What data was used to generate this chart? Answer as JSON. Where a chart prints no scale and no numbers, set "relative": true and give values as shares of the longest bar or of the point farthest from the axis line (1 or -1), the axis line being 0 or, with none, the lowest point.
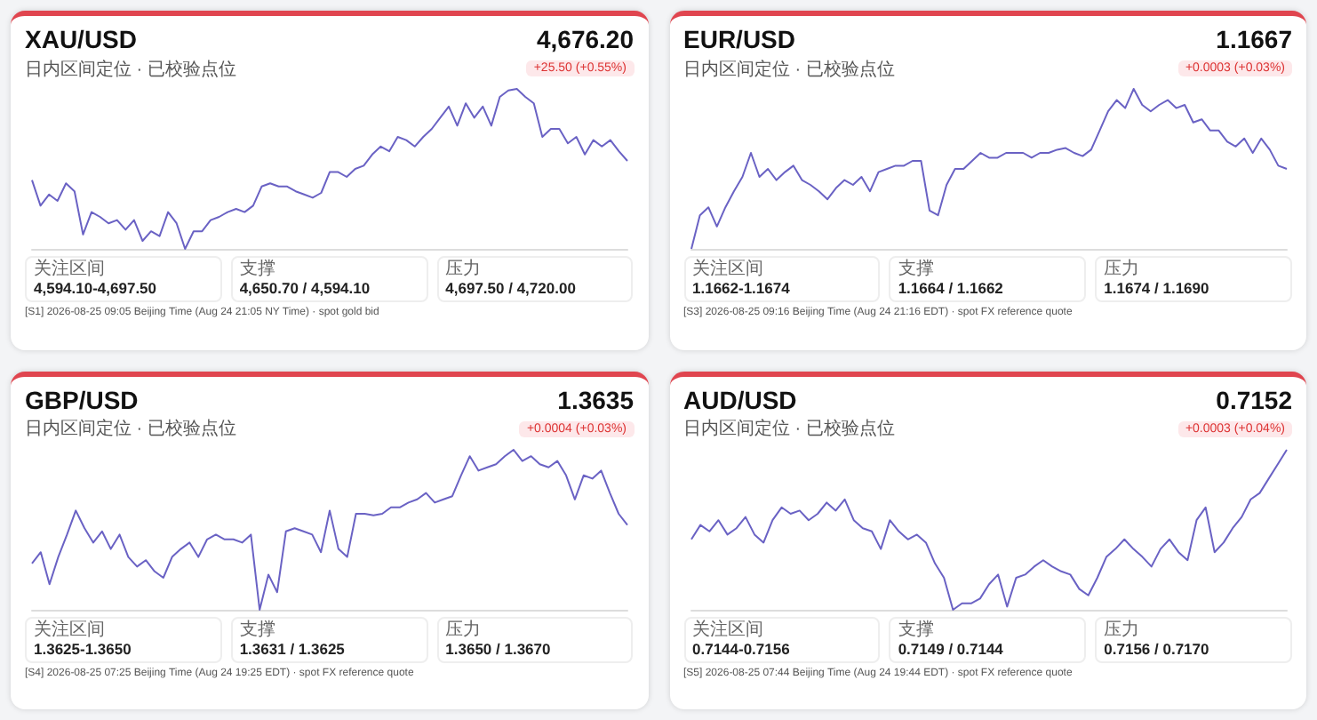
{
  "chart_data": [
    {
      "type": "line",
      "title": "XAU/USD",
      "subtitle": "日内区间定位 · 已校验点位",
      "relative": true,
      "categories": [
        null,
        null,
        null,
        null,
        null,
        null,
        null,
        null,
        null,
        null,
        null,
        null,
        null,
        null,
        null,
        null,
        null,
        null,
        null,
        null,
        null,
        null,
        null,
        null,
        null,
        null,
        null,
        null,
        null,
        null,
        null,
        null,
        null,
        null,
        null,
        null,
        null,
        null,
        null,
        null,
        null,
        null,
        null,
        null,
        null,
        null,
        null,
        null,
        null,
        null,
        null,
        null,
        null,
        null,
        null,
        null,
        null,
        null,
        null,
        null,
        null,
        null,
        null,
        null,
        null,
        null,
        null,
        null,
        null,
        null,
        null
      ],
      "series": [
        {
          "color": "#6a62c4",
          "values": [
            0.43,
            0.27,
            0.34,
            0.3,
            0.41,
            0.36,
            0.09,
            0.23,
            0.2,
            0.16,
            0.18,
            0.12,
            0.18,
            0.05,
            0.11,
            0.08,
            0.23,
            0.16,
            0,
            0.11,
            0.11,
            0.18,
            0.2,
            0.23,
            0.25,
            0.23,
            0.27,
            0.39,
            0.41,
            0.39,
            0.39,
            0.36,
            0.34,
            0.32,
            0.35,
            0.48,
            0.48,
            0.45,
            0.5,
            0.52,
            0.59,
            0.64,
            0.61,
            0.7,
            0.68,
            0.64,
            0.7,
            0.75,
            0.82,
            0.89,
            0.77,
            0.91,
            0.82,
            0.89,
            0.77,
            0.95,
            0.99,
            1,
            0.95,
            0.91,
            0.7,
            0.75,
            0.75,
            0.66,
            0.7,
            0.59,
            0.68,
            0.64,
            0.68,
            0.61,
            0.55
          ]
        }
      ],
      "annotations": [
        "4,676.20",
        "+25.50 (+0.55%)",
        "关注区间",
        "4,594.10-4,697.50",
        "支撑",
        "4,650.70 / 4,594.10",
        "压力",
        "4,697.50 / 4,720.00",
        "[S1] 2026-08-25 09:05 Beijing Time (Aug 24 21:05 NY Time) · spot gold bid"
      ]
    },
    {
      "type": "line",
      "title": "EUR/USD",
      "subtitle": "日内区间定位 · 已校验点位",
      "relative": true,
      "categories": [
        null,
        null,
        null,
        null,
        null,
        null,
        null,
        null,
        null,
        null,
        null,
        null,
        null,
        null,
        null,
        null,
        null,
        null,
        null,
        null,
        null,
        null,
        null,
        null,
        null,
        null,
        null,
        null,
        null,
        null,
        null,
        null,
        null,
        null,
        null,
        null,
        null,
        null,
        null,
        null,
        null,
        null,
        null,
        null,
        null,
        null,
        null,
        null,
        null,
        null,
        null,
        null,
        null,
        null,
        null,
        null,
        null,
        null,
        null,
        null,
        null,
        null,
        null,
        null,
        null,
        null,
        null,
        null,
        null,
        null,
        null
      ],
      "series": [
        {
          "color": "#6a62c4",
          "values": [
            0,
            0.21,
            0.26,
            0.14,
            0.26,
            0.36,
            0.45,
            0.6,
            0.45,
            0.5,
            0.43,
            0.48,
            0.52,
            0.43,
            0.4,
            0.36,
            0.31,
            0.38,
            0.43,
            0.4,
            0.45,
            0.36,
            0.48,
            0.5,
            0.52,
            0.52,
            0.55,
            0.55,
            0.24,
            0.21,
            0.4,
            0.5,
            0.5,
            0.55,
            0.6,
            0.57,
            0.57,
            0.6,
            0.6,
            0.6,
            0.57,
            0.6,
            0.6,
            0.62,
            0.63,
            0.6,
            0.58,
            0.62,
            0.74,
            0.86,
            0.93,
            0.88,
            1,
            0.9,
            0.86,
            0.9,
            0.93,
            0.88,
            0.9,
            0.79,
            0.81,
            0.74,
            0.74,
            0.67,
            0.64,
            0.69,
            0.6,
            0.69,
            0.62,
            0.52,
            0.5
          ]
        }
      ],
      "annotations": [
        "1.1667",
        "+0.0003 (+0.03%)",
        "关注区间",
        "1.1662-1.1674",
        "支撑",
        "1.1664 / 1.1662",
        "压力",
        "1.1674 / 1.1690",
        "[S3] 2026-08-25 09:16 Beijing Time (Aug 24 21:16 EDT) · spot FX reference quote"
      ]
    },
    {
      "type": "line",
      "title": "GBP/USD",
      "subtitle": "日内区间定位 · 已校验点位",
      "relative": true,
      "categories": [
        null,
        null,
        null,
        null,
        null,
        null,
        null,
        null,
        null,
        null,
        null,
        null,
        null,
        null,
        null,
        null,
        null,
        null,
        null,
        null,
        null,
        null,
        null,
        null,
        null,
        null,
        null,
        null,
        null,
        null,
        null,
        null,
        null,
        null,
        null,
        null,
        null,
        null,
        null,
        null,
        null,
        null,
        null,
        null,
        null,
        null,
        null,
        null,
        null,
        null,
        null,
        null,
        null,
        null,
        null,
        null,
        null,
        null,
        null,
        null,
        null,
        null,
        null,
        null,
        null,
        null,
        null,
        null,
        null
      ],
      "series": [
        {
          "color": "#6a62c4",
          "values": [
            0.29,
            0.36,
            0.16,
            0.33,
            0.47,
            0.62,
            0.51,
            0.42,
            0.49,
            0.38,
            0.47,
            0.33,
            0.27,
            0.31,
            0.24,
            0.2,
            0.33,
            0.38,
            0.42,
            0.33,
            0.44,
            0.47,
            0.44,
            0.44,
            0.42,
            0.47,
            0,
            0.22,
            0.11,
            0.49,
            0.51,
            0.49,
            0.47,
            0.36,
            0.62,
            0.38,
            0.33,
            0.6,
            0.6,
            0.59,
            0.6,
            0.64,
            0.64,
            0.67,
            0.69,
            0.73,
            0.67,
            0.69,
            0.71,
            0.84,
            0.96,
            0.87,
            0.89,
            0.91,
            0.96,
            1,
            0.93,
            0.96,
            0.91,
            0.89,
            0.93,
            0.84,
            0.69,
            0.84,
            0.82,
            0.87,
            0.73,
            0.6,
            0.53
          ]
        }
      ],
      "annotations": [
        "1.3635",
        "+0.0004 (+0.03%)",
        "关注区间",
        "1.3625-1.3650",
        "支撑",
        "1.3631 / 1.3625",
        "压力",
        "1.3650 / 1.3670",
        "[S4] 2026-08-25 07:25 Beijing Time (Aug 24 19:25 EDT) · spot FX reference quote"
      ]
    },
    {
      "type": "line",
      "title": "AUD/USD",
      "subtitle": "日内区间定位 · 已校验点位",
      "relative": true,
      "categories": [
        null,
        null,
        null,
        null,
        null,
        null,
        null,
        null,
        null,
        null,
        null,
        null,
        null,
        null,
        null,
        null,
        null,
        null,
        null,
        null,
        null,
        null,
        null,
        null,
        null,
        null,
        null,
        null,
        null,
        null,
        null,
        null,
        null,
        null,
        null,
        null,
        null,
        null,
        null,
        null,
        null,
        null,
        null,
        null,
        null,
        null,
        null,
        null,
        null,
        null,
        null,
        null,
        null,
        null,
        null,
        null,
        null,
        null,
        null,
        null,
        null,
        null,
        null,
        null,
        null,
        null,
        null
      ],
      "series": [
        {
          "color": "#6a62c4",
          "values": [
            0.44,
            0.53,
            0.49,
            0.56,
            0.47,
            0.51,
            0.58,
            0.47,
            0.42,
            0.56,
            0.64,
            0.6,
            0.62,
            0.56,
            0.6,
            0.67,
            0.62,
            0.69,
            0.56,
            0.51,
            0.49,
            0.38,
            0.56,
            0.49,
            0.44,
            0.47,
            0.42,
            0.29,
            0.2,
            0,
            0.04,
            0.04,
            0.07,
            0.16,
            0.22,
            0.02,
            0.2,
            0.22,
            0.27,
            0.31,
            0.27,
            0.24,
            0.22,
            0.13,
            0.09,
            0.2,
            0.33,
            0.38,
            0.44,
            0.38,
            0.33,
            0.27,
            0.38,
            0.44,
            0.36,
            0.31,
            0.56,
            0.64,
            0.36,
            0.42,
            0.51,
            0.58,
            0.69,
            0.73,
            0.82,
            0.91,
            1
          ]
        }
      ],
      "annotations": [
        "0.7152",
        "+0.0003 (+0.04%)",
        "关注区间",
        "0.7144-0.7156",
        "支撑",
        "0.7149 / 0.7144",
        "压力",
        "0.7156 / 0.7170",
        "[S5] 2026-08-25 07:44 Beijing Time (Aug 24 19:44 EDT) · spot FX reference quote"
      ]
    }
  ]
}
